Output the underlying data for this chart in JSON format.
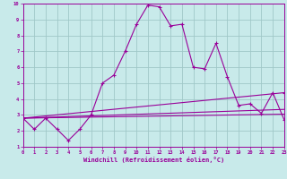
{
  "xlabel": "Windchill (Refroidissement éolien,°C)",
  "bg_color": "#c8eaea",
  "grid_color": "#a0c8c8",
  "line_color": "#990099",
  "xlim": [
    0,
    23
  ],
  "ylim": [
    1,
    10
  ],
  "xticks": [
    0,
    1,
    2,
    3,
    4,
    5,
    6,
    7,
    8,
    9,
    10,
    11,
    12,
    13,
    14,
    15,
    16,
    17,
    18,
    19,
    20,
    21,
    22,
    23
  ],
  "yticks": [
    1,
    2,
    3,
    4,
    5,
    6,
    7,
    8,
    9,
    10
  ],
  "line1_x": [
    0,
    1,
    2,
    3,
    4,
    5,
    6,
    7,
    8,
    9,
    10,
    11,
    12,
    13,
    14,
    15,
    16,
    17,
    18,
    19,
    20,
    21,
    22,
    23
  ],
  "line1_y": [
    2.8,
    2.1,
    2.8,
    2.1,
    1.4,
    2.1,
    3.0,
    5.0,
    5.5,
    7.0,
    8.7,
    9.9,
    9.8,
    8.6,
    8.7,
    6.0,
    5.9,
    7.5,
    5.4,
    3.6,
    3.7,
    3.1,
    4.4,
    2.7
  ],
  "line2_x": [
    0,
    23
  ],
  "line2_y": [
    2.8,
    4.4
  ],
  "line3_x": [
    0,
    23
  ],
  "line3_y": [
    2.8,
    3.35
  ],
  "line4_x": [
    0,
    23
  ],
  "line4_y": [
    2.8,
    3.05
  ]
}
